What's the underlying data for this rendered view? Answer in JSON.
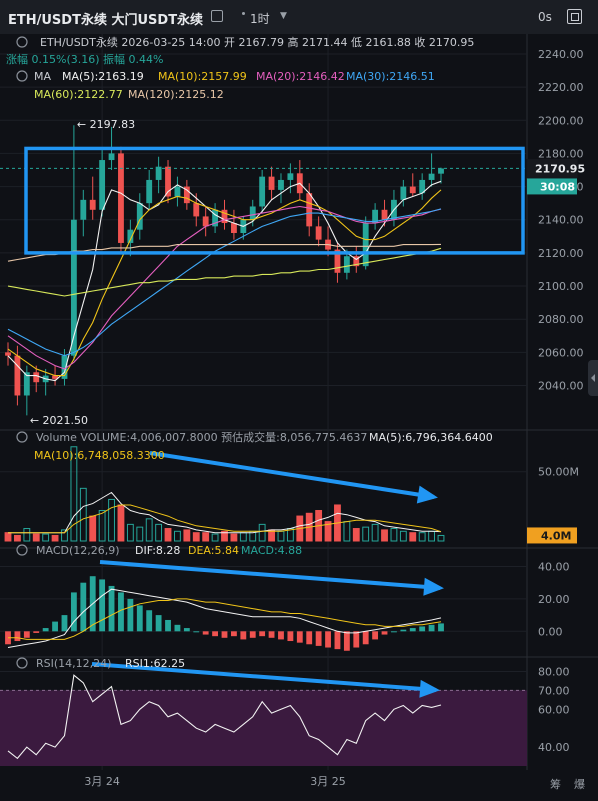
{
  "header": {
    "title": "ETH/USDT永续 大门USDT永续",
    "interval": "1时",
    "scale": "0s"
  },
  "info": {
    "line1": "ETH/USDT永续  2026-03-25 14:00  开 2167.79  高 2171.44  低 2161.88  收 2170.95",
    "change": "涨幅 0.15%(3.16)  振幅 0.44%",
    "ma_label": "MA",
    "ma": [
      {
        "text": "MA(5):2163.19",
        "color": "#f2f2f2"
      },
      {
        "text": "MA(10):2157.99",
        "color": "#f0c419"
      },
      {
        "text": "MA(20):2146.42",
        "color": "#e45fbf"
      },
      {
        "text": "MA(30):2146.51",
        "color": "#3fa7f5"
      },
      {
        "text": "MA(60):2122.77",
        "color": "#d7e85a"
      },
      {
        "text": "MA(120):2125.12",
        "color": "#e8c7a8"
      }
    ]
  },
  "price_labels": {
    "high": "2197.83",
    "low": "2021.50",
    "current": "2170.95",
    "countdown": "30:08"
  },
  "volume": {
    "line1": "Volume  VOLUME:4,006,007.8000  预估成交量:8,056,775.4637",
    "ma5": "MA(5):6,796,364.6400",
    "ma10": "MA(10):6,748,058.3300",
    "badge": "4.0M"
  },
  "macd": {
    "label": "MACD(12,26,9)",
    "dif": "DIF:8.28",
    "dea": "DEA:5.84",
    "macd": "MACD:4.88"
  },
  "rsi": {
    "label": "RSI(14,12,24)",
    "value": "RSI1:62.25"
  },
  "x_labels": [
    "3月 24",
    "3月 25"
  ],
  "bottom": {
    "left": "筹",
    "right": "爆"
  },
  "colors": {
    "up": "#26a69a",
    "down": "#ef5350",
    "accent": "#2196f3",
    "rsi_bg": "#3b1a3f"
  },
  "chart_data": [
    {
      "type": "candlestick",
      "title": "ETH/USDT永续",
      "y_ticks": [
        2040,
        2060,
        2080,
        2100,
        2120,
        2140,
        2160,
        2180,
        2200,
        2220,
        2240
      ],
      "ylim": [
        2018,
        2246
      ],
      "high": 2197.83,
      "low": 2021.5,
      "last": 2170.95,
      "candles": [
        [
          2060,
          2066,
          2052,
          2058
        ],
        [
          2058,
          2064,
          2028,
          2034
        ],
        [
          2034,
          2052,
          2022,
          2048
        ],
        [
          2048,
          2052,
          2036,
          2042
        ],
        [
          2042,
          2050,
          2034,
          2046
        ],
        [
          2046,
          2052,
          2040,
          2044
        ],
        [
          2044,
          2062,
          2040,
          2058
        ],
        [
          2058,
          2197,
          2055,
          2140
        ],
        [
          2140,
          2158,
          2130,
          2152
        ],
        [
          2152,
          2166,
          2140,
          2146
        ],
        [
          2146,
          2182,
          2142,
          2176
        ],
        [
          2176,
          2196,
          2170,
          2180
        ],
        [
          2180,
          2184,
          2120,
          2126
        ],
        [
          2126,
          2140,
          2118,
          2134
        ],
        [
          2134,
          2156,
          2128,
          2150
        ],
        [
          2150,
          2170,
          2146,
          2164
        ],
        [
          2164,
          2178,
          2156,
          2172
        ],
        [
          2172,
          2176,
          2150,
          2154
        ],
        [
          2154,
          2166,
          2148,
          2160
        ],
        [
          2160,
          2164,
          2146,
          2150
        ],
        [
          2150,
          2156,
          2136,
          2142
        ],
        [
          2142,
          2148,
          2130,
          2136
        ],
        [
          2136,
          2150,
          2132,
          2146
        ],
        [
          2146,
          2152,
          2134,
          2138
        ],
        [
          2138,
          2146,
          2128,
          2132
        ],
        [
          2132,
          2142,
          2128,
          2140
        ],
        [
          2140,
          2152,
          2136,
          2148
        ],
        [
          2148,
          2170,
          2144,
          2166
        ],
        [
          2166,
          2172,
          2152,
          2158
        ],
        [
          2158,
          2168,
          2150,
          2164
        ],
        [
          2164,
          2174,
          2156,
          2168
        ],
        [
          2168,
          2176,
          2152,
          2156
        ],
        [
          2156,
          2162,
          2130,
          2136
        ],
        [
          2136,
          2142,
          2124,
          2128
        ],
        [
          2128,
          2136,
          2118,
          2122
        ],
        [
          2122,
          2126,
          2102,
          2108
        ],
        [
          2108,
          2122,
          2104,
          2118
        ],
        [
          2118,
          2124,
          2108,
          2112
        ],
        [
          2112,
          2142,
          2110,
          2138
        ],
        [
          2138,
          2150,
          2134,
          2146
        ],
        [
          2146,
          2152,
          2136,
          2140
        ],
        [
          2140,
          2158,
          2136,
          2152
        ],
        [
          2152,
          2164,
          2148,
          2160
        ],
        [
          2160,
          2168,
          2154,
          2156
        ],
        [
          2156,
          2168,
          2152,
          2164
        ],
        [
          2164,
          2180,
          2160,
          2167.79
        ],
        [
          2167.79,
          2171.44,
          2161.88,
          2170.95
        ]
      ],
      "series": [
        {
          "name": "MA(5)",
          "color": "#f2f2f2",
          "values": [
            2058,
            2052,
            2046,
            2046,
            2044,
            2043,
            2048,
            2070,
            2090,
            2110,
            2145,
            2158,
            2156,
            2152,
            2150,
            2146,
            2149,
            2157,
            2161,
            2158,
            2153,
            2148,
            2143,
            2140,
            2138,
            2136,
            2139,
            2145,
            2152,
            2156,
            2160,
            2162,
            2156,
            2148,
            2138,
            2126,
            2120,
            2116,
            2120,
            2130,
            2138,
            2146,
            2152,
            2154,
            2156,
            2161,
            2163.19
          ]
        },
        {
          "name": "MA(10)",
          "color": "#f0c419",
          "values": [
            2062,
            2058,
            2054,
            2050,
            2048,
            2046,
            2046,
            2056,
            2068,
            2078,
            2092,
            2104,
            2116,
            2128,
            2140,
            2146,
            2150,
            2152,
            2154,
            2153,
            2150,
            2148,
            2146,
            2144,
            2142,
            2140,
            2140,
            2142,
            2144,
            2147,
            2150,
            2152,
            2150,
            2148,
            2145,
            2140,
            2135,
            2130,
            2128,
            2128,
            2130,
            2134,
            2138,
            2142,
            2147,
            2153,
            2157.99
          ]
        },
        {
          "name": "MA(20)",
          "color": "#e45fbf",
          "values": [
            2070,
            2066,
            2062,
            2058,
            2055,
            2052,
            2050,
            2054,
            2060,
            2066,
            2074,
            2082,
            2088,
            2094,
            2100,
            2106,
            2112,
            2118,
            2124,
            2128,
            2132,
            2136,
            2138,
            2140,
            2141,
            2142,
            2143,
            2144,
            2145,
            2146,
            2147,
            2148,
            2147,
            2146,
            2145,
            2143,
            2141,
            2139,
            2138,
            2138,
            2139,
            2140,
            2141,
            2142,
            2143,
            2145,
            2146.42
          ]
        },
        {
          "name": "MA(30)",
          "color": "#3fa7f5",
          "values": [
            2074,
            2071,
            2068,
            2065,
            2062,
            2060,
            2058,
            2060,
            2063,
            2067,
            2072,
            2077,
            2081,
            2085,
            2089,
            2093,
            2097,
            2101,
            2105,
            2109,
            2113,
            2117,
            2121,
            2124,
            2127,
            2130,
            2133,
            2136,
            2138,
            2140,
            2142,
            2143,
            2144,
            2144,
            2143,
            2142,
            2141,
            2140,
            2139,
            2139,
            2140,
            2141,
            2142,
            2143,
            2144,
            2145,
            2146.51
          ]
        },
        {
          "name": "MA(60)",
          "color": "#d7e85a",
          "values": [
            2100,
            2099,
            2098,
            2097,
            2096,
            2095,
            2094,
            2095,
            2096,
            2097,
            2098,
            2099,
            2100,
            2101,
            2102,
            2102,
            2103,
            2103,
            2104,
            2104,
            2104,
            2105,
            2105,
            2105,
            2106,
            2106,
            2106,
            2107,
            2107,
            2108,
            2108,
            2109,
            2109,
            2110,
            2110,
            2111,
            2112,
            2113,
            2114,
            2115,
            2116,
            2117,
            2118,
            2119,
            2120,
            2121,
            2122.77
          ]
        },
        {
          "name": "MA(120)",
          "color": "#e8c7a8",
          "values": [
            2115,
            2116,
            2117,
            2118,
            2119,
            2119,
            2120,
            2121,
            2121,
            2122,
            2122,
            2123,
            2123,
            2123,
            2124,
            2124,
            2124,
            2124,
            2125,
            2125,
            2125,
            2125,
            2125,
            2125,
            2125,
            2125,
            2125,
            2125,
            2125,
            2125,
            2125,
            2125,
            2125,
            2125,
            2125,
            2124,
            2124,
            2124,
            2124,
            2124,
            2124,
            2124,
            2125,
            2125,
            2125,
            2125,
            2125.12
          ]
        }
      ]
    },
    {
      "type": "bar",
      "title": "Volume",
      "y_ticks": [
        50
      ],
      "ylim": [
        0,
        70
      ],
      "values": [
        6,
        4,
        9,
        5,
        5,
        4,
        8,
        68,
        38,
        18,
        22,
        30,
        26,
        12,
        10,
        16,
        12,
        9,
        7,
        8,
        6,
        6,
        5,
        7,
        5,
        6,
        7,
        12,
        8,
        7,
        9,
        18,
        20,
        22,
        14,
        26,
        14,
        9,
        10,
        12,
        8,
        9,
        7,
        6,
        6,
        7,
        4
      ],
      "ma5": [
        6,
        6,
        6,
        6,
        6,
        6,
        6,
        18,
        25,
        27,
        31,
        35,
        27,
        22,
        20,
        19,
        15,
        12,
        11,
        10,
        8,
        7,
        6,
        6,
        6,
        6,
        6,
        7,
        8,
        8,
        9,
        11,
        12,
        15,
        17,
        20,
        19,
        17,
        15,
        14,
        11,
        10,
        9,
        8,
        7,
        7,
        6.8
      ],
      "ma10": [
        6,
        6,
        6,
        6,
        6,
        6,
        6,
        12,
        16,
        18,
        20,
        24,
        26,
        26,
        24,
        22,
        20,
        18,
        15,
        13,
        11,
        10,
        9,
        8,
        7,
        7,
        7,
        7,
        7,
        7,
        8,
        9,
        10,
        11,
        12,
        13,
        14,
        15,
        15,
        15,
        14,
        13,
        12,
        11,
        10,
        9,
        6.7
      ]
    },
    {
      "type": "bar",
      "title": "MACD(12,26,9)",
      "y_ticks": [
        0,
        20,
        40
      ],
      "ylim": [
        -14,
        44
      ],
      "values": [
        -8,
        -6,
        -4,
        -1,
        2,
        6,
        10,
        24,
        30,
        34,
        32,
        28,
        24,
        20,
        16,
        13,
        10,
        7,
        4,
        2,
        0,
        -2,
        -3,
        -4,
        -3,
        -5,
        -4,
        -3,
        -4,
        -5,
        -6,
        -7,
        -8,
        -9,
        -10,
        -11,
        -12,
        -10,
        -8,
        -5,
        -2,
        0,
        1,
        2,
        3,
        4,
        4.88
      ],
      "dif": [
        -10,
        -9,
        -8,
        -7,
        -6,
        -4,
        -2,
        6,
        12,
        17,
        22,
        26,
        25,
        24,
        23,
        22,
        21,
        20,
        19,
        18,
        16,
        14,
        13,
        12,
        11,
        10,
        9,
        9,
        9,
        9,
        9,
        8,
        6,
        4,
        2,
        0,
        -1,
        -1,
        0,
        1,
        2,
        3,
        4,
        5,
        6,
        7,
        8.28
      ],
      "dea": [
        -4,
        -4,
        -5,
        -5,
        -5,
        -5,
        -5,
        -3,
        0,
        4,
        7,
        10,
        13,
        15,
        17,
        18,
        19,
        19,
        20,
        20,
        19,
        18,
        18,
        17,
        16,
        15,
        14,
        13,
        12,
        12,
        11,
        11,
        10,
        9,
        8,
        7,
        6,
        5,
        4,
        4,
        3,
        3,
        3,
        4,
        4,
        5,
        5.84
      ]
    },
    {
      "type": "line",
      "title": "RSI(14,12,24)",
      "y_ticks": [
        40,
        60,
        70,
        80
      ],
      "ylim": [
        30,
        85
      ],
      "values": [
        38,
        34,
        40,
        36,
        42,
        40,
        46,
        78,
        74,
        64,
        68,
        72,
        52,
        54,
        60,
        64,
        62,
        56,
        58,
        54,
        50,
        48,
        52,
        50,
        48,
        52,
        56,
        64,
        58,
        60,
        62,
        56,
        46,
        44,
        40,
        36,
        44,
        42,
        54,
        58,
        54,
        60,
        62,
        58,
        62,
        61,
        62.25
      ]
    }
  ]
}
